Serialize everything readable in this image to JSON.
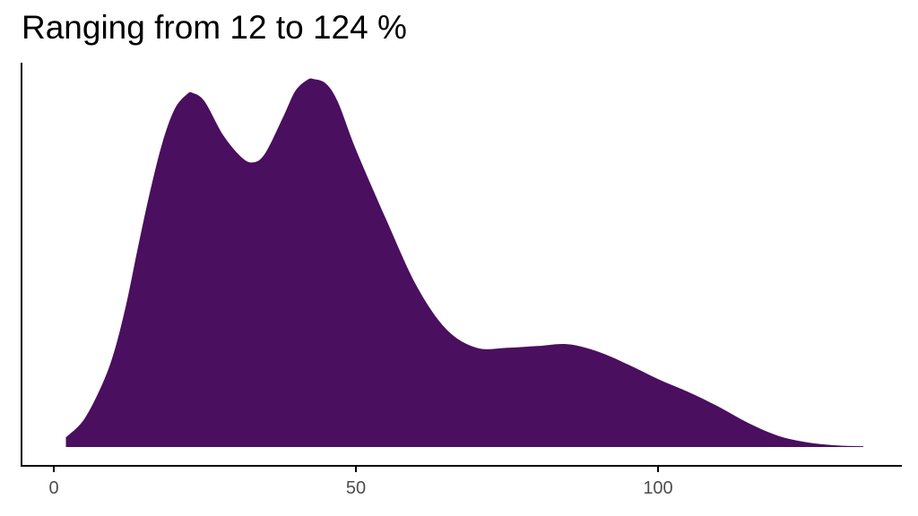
{
  "chart_data": {
    "type": "area",
    "title": "Ranging from 12 to 124 %",
    "xlabel": "",
    "ylabel": "",
    "xlim": [
      -5,
      140
    ],
    "ylim": [
      0,
      1
    ],
    "grid": false,
    "legend": "none",
    "fill_color": "#4a0f5e",
    "x_ticks": [
      {
        "value": 0,
        "label": "0"
      },
      {
        "value": 50,
        "label": "50"
      },
      {
        "value": 100,
        "label": "100"
      }
    ],
    "series": [
      {
        "x": [
          2,
          5,
          8,
          10,
          12,
          14,
          16,
          18,
          20,
          22,
          23,
          25,
          28,
          31,
          33,
          35,
          38,
          40,
          42,
          43,
          45,
          47,
          50,
          55,
          60,
          65,
          70,
          75,
          80,
          85,
          90,
          95,
          100,
          105,
          110,
          115,
          120,
          125,
          130,
          134
        ],
        "y": [
          0.026,
          0.075,
          0.17,
          0.26,
          0.39,
          0.55,
          0.7,
          0.83,
          0.92,
          0.96,
          0.964,
          0.94,
          0.85,
          0.79,
          0.775,
          0.8,
          0.9,
          0.97,
          1.0,
          1.002,
          0.99,
          0.94,
          0.81,
          0.62,
          0.44,
          0.32,
          0.27,
          0.27,
          0.275,
          0.28,
          0.26,
          0.225,
          0.185,
          0.15,
          0.11,
          0.065,
          0.03,
          0.012,
          0.004,
          0.002
        ]
      }
    ]
  }
}
